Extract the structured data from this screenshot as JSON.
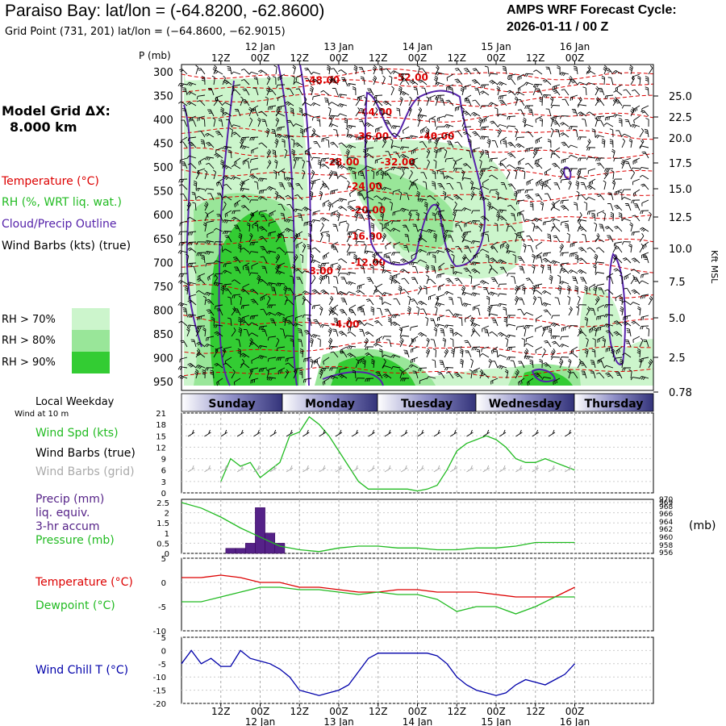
{
  "header": {
    "title": "Paraiso Bay:  lat/lon = (-64.8200, -62.8600)",
    "subtitle": "Grid Point (731, 201) lat/lon = (−64.8600, −62.9015)",
    "cycle_line1": "AMPS WRF Forecast Cycle:",
    "cycle_line2": "2026-01-11 / 00  Z"
  },
  "left_panel": {
    "grid_label": "Model Grid ΔX:",
    "grid_value": "8.000 km",
    "legend_temp": "Temperature (°C)",
    "legend_rh": "RH (%, WRT liq. wat.)",
    "legend_cloud": "Cloud/Precip Outline",
    "legend_wind": "Wind Barbs (kts) (true)",
    "rh70": "RH > 70%",
    "rh80": "RH > 80%",
    "rh90": "RH > 90%",
    "local_weekday": "Local Weekday",
    "wind_at": "Wind at 10 m",
    "wind_spd": "Wind Spd (kts)",
    "wind_barbs_true": "Wind Barbs (true)",
    "wind_barbs_grid": "Wind Barbs (grid)",
    "precip1": "Precip (mm)",
    "precip2": "liq. equiv.",
    "precip3": "3-hr accum",
    "pressure": "Pressure (mb)",
    "pressure_unit": "(mb)",
    "temperature": "Temperature (°C)",
    "dewpoint": "Dewpoint (°C)",
    "windchill": "Wind Chill T (°C)"
  },
  "colors": {
    "rh70": "#ccf5cc",
    "rh80": "#99e699",
    "rh90": "#33cc33",
    "temperature": "#dd0000",
    "dewpoint": "#22bb22",
    "cloud": "#5522aa",
    "windchill": "#0000aa",
    "precip": "#552288",
    "weekday_band": "#33337a"
  },
  "chart_data": [
    {
      "type": "heatmap",
      "name": "cross-section",
      "ylabel": "P (mb)",
      "y2label": "Kft MSL",
      "yticks": [
        "300",
        "350",
        "400",
        "450",
        "500",
        "550",
        "600",
        "650",
        "700",
        "750",
        "800",
        "850",
        "900",
        "950"
      ],
      "y2ticks": [
        "25.0",
        "22.5",
        "20.0",
        "17.5",
        "15.0",
        "12.5",
        "10.0",
        "7.5",
        "5.0",
        "2.5",
        "0.78"
      ],
      "x_hours": [
        -12,
        132
      ],
      "top_time_ticks": [
        {
          "h": 0,
          "label": "12Z"
        },
        {
          "h": 12,
          "label": "00Z",
          "date": "12 Jan"
        },
        {
          "h": 24,
          "label": "12Z"
        },
        {
          "h": 36,
          "label": "00Z",
          "date": "13 Jan"
        },
        {
          "h": 48,
          "label": "12Z"
        },
        {
          "h": 60,
          "label": "00Z",
          "date": "14 Jan"
        },
        {
          "h": 72,
          "label": "12Z"
        },
        {
          "h": 84,
          "label": "00Z",
          "date": "15 Jan"
        },
        {
          "h": 96,
          "label": "12Z"
        },
        {
          "h": 108,
          "label": "00Z",
          "date": "16 Jan"
        }
      ],
      "temperature_labels": [
        {
          "h": 31,
          "p": 318,
          "label": "-48.00"
        },
        {
          "h": 58,
          "p": 312,
          "label": "-52.00"
        },
        {
          "h": 47,
          "p": 385,
          "label": "-44.00"
        },
        {
          "h": 66,
          "p": 435,
          "label": "-40.00"
        },
        {
          "h": 46,
          "p": 435,
          "label": "-36.00"
        },
        {
          "h": 37,
          "p": 490,
          "label": "-28.00"
        },
        {
          "h": 54,
          "p": 490,
          "label": "-32.00"
        },
        {
          "h": 44,
          "p": 540,
          "label": "-24.00"
        },
        {
          "h": 45,
          "p": 590,
          "label": "-20.00"
        },
        {
          "h": 44,
          "p": 645,
          "label": "-16.00"
        },
        {
          "h": 45,
          "p": 700,
          "label": "-12.00"
        },
        {
          "h": 30,
          "p": 718,
          "label": "-8.00"
        },
        {
          "h": 38,
          "p": 830,
          "label": "-4.00"
        }
      ]
    },
    {
      "type": "line",
      "name": "weekday",
      "labels": [
        "Sunday",
        "Monday",
        "Tuesday",
        "Wednesday",
        "Thursday"
      ]
    },
    {
      "type": "line",
      "name": "wind-speed",
      "ylabel": "Wind Spd (kts)",
      "ylim": [
        0,
        21
      ],
      "yticks": [
        0,
        3,
        6,
        9,
        12,
        15,
        18,
        21
      ],
      "x": [
        0,
        3,
        6,
        9,
        12,
        15,
        18,
        21,
        24,
        27,
        30,
        33,
        36,
        39,
        42,
        45,
        48,
        51,
        54,
        57,
        60,
        63,
        66,
        69,
        72,
        75,
        78,
        81,
        84,
        87,
        90,
        93,
        96,
        99,
        102,
        105,
        108
      ],
      "values": [
        3,
        9,
        7,
        8,
        4,
        6,
        8,
        15,
        16,
        20,
        18,
        15,
        11,
        7,
        3,
        1,
        1,
        1,
        1,
        1,
        0.5,
        1,
        2,
        6,
        11,
        13,
        14,
        15,
        14,
        12,
        9,
        8,
        8,
        9,
        8,
        7,
        6
      ]
    },
    {
      "type": "bar",
      "name": "precip-pressure",
      "ylabel": "Precip (mm)",
      "ylim": [
        0,
        2.5
      ],
      "yticks": [
        "0",
        "0.5",
        "1",
        "1.5",
        "2",
        "2.5"
      ],
      "y2ticks": [
        "956",
        "958",
        "960",
        "962",
        "964",
        "966",
        "968",
        "969",
        "970"
      ],
      "precip_x": [
        3,
        6,
        9,
        12,
        15,
        18
      ],
      "precip_values": [
        0.25,
        0.25,
        0.5,
        2.25,
        1.0,
        0.5
      ],
      "pressure_x": [
        -12,
        -6,
        0,
        6,
        12,
        18,
        24,
        30,
        36,
        42,
        48,
        54,
        60,
        66,
        72,
        78,
        84,
        90,
        96,
        102,
        108
      ],
      "pressure_values": [
        970,
        968.5,
        966,
        963,
        960.5,
        958,
        957,
        956.5,
        957.5,
        958,
        958,
        957.5,
        957.5,
        957,
        957,
        957.5,
        957.5,
        958,
        959,
        959,
        959
      ]
    },
    {
      "type": "line",
      "name": "temperature-dewpoint",
      "ylim": [
        -10,
        5
      ],
      "yticks": [
        "5",
        "0",
        "-5",
        "-10"
      ],
      "x": [
        -12,
        -6,
        0,
        6,
        12,
        18,
        24,
        30,
        36,
        42,
        48,
        54,
        60,
        66,
        72,
        78,
        84,
        90,
        96,
        102,
        108
      ],
      "temperature": [
        1,
        1,
        1.5,
        1,
        0,
        0,
        -1,
        -1,
        -1.5,
        -2,
        -2,
        -1.5,
        -1.5,
        -2,
        -2,
        -2,
        -2.5,
        -3,
        -3,
        -3,
        -1
      ],
      "dewpoint": [
        -4,
        -4,
        -3,
        -2,
        -1,
        -1,
        -1.5,
        -1.5,
        -2,
        -2.5,
        -2,
        -2.5,
        -2.5,
        -3.5,
        -6,
        -5,
        -5,
        -6.5,
        -5,
        -3,
        -3
      ]
    },
    {
      "type": "line",
      "name": "wind-chill",
      "ylabel": "Wind Chill T (°C)",
      "ylim": [
        -20,
        5
      ],
      "yticks": [
        "5",
        "0",
        "-5",
        "-10",
        "-15",
        "-20"
      ],
      "x": [
        -12,
        -9,
        -6,
        -3,
        0,
        3,
        6,
        9,
        12,
        15,
        18,
        21,
        24,
        27,
        30,
        33,
        36,
        39,
        42,
        45,
        48,
        51,
        54,
        57,
        60,
        63,
        66,
        69,
        72,
        75,
        78,
        81,
        84,
        87,
        90,
        93,
        96,
        99,
        102,
        105,
        108
      ],
      "values": [
        -5,
        0,
        -5,
        -3,
        -6,
        -6,
        0,
        -3,
        -4,
        -5,
        -7,
        -10,
        -15,
        -16,
        -17,
        -16,
        -15,
        -13,
        -8,
        -3,
        -1,
        -1,
        -1,
        -1,
        -1,
        -1,
        -2,
        -5,
        -10,
        -13,
        -15,
        -16,
        -17,
        -16,
        -13,
        -11,
        -12,
        -13,
        -11,
        -9,
        -5
      ]
    },
    {
      "type": "line",
      "name": "bottom-axis",
      "time_ticks": [
        {
          "h": 0,
          "label": "12Z"
        },
        {
          "h": 12,
          "label": "00Z",
          "date": "12 Jan"
        },
        {
          "h": 24,
          "label": "12Z"
        },
        {
          "h": 36,
          "label": "00Z",
          "date": "13 Jan"
        },
        {
          "h": 48,
          "label": "12Z"
        },
        {
          "h": 60,
          "label": "00Z",
          "date": "14 Jan"
        },
        {
          "h": 72,
          "label": "12Z"
        },
        {
          "h": 84,
          "label": "00Z",
          "date": "15 Jan"
        },
        {
          "h": 96,
          "label": "12Z"
        },
        {
          "h": 108,
          "label": "00Z",
          "date": "16 Jan"
        }
      ]
    }
  ]
}
